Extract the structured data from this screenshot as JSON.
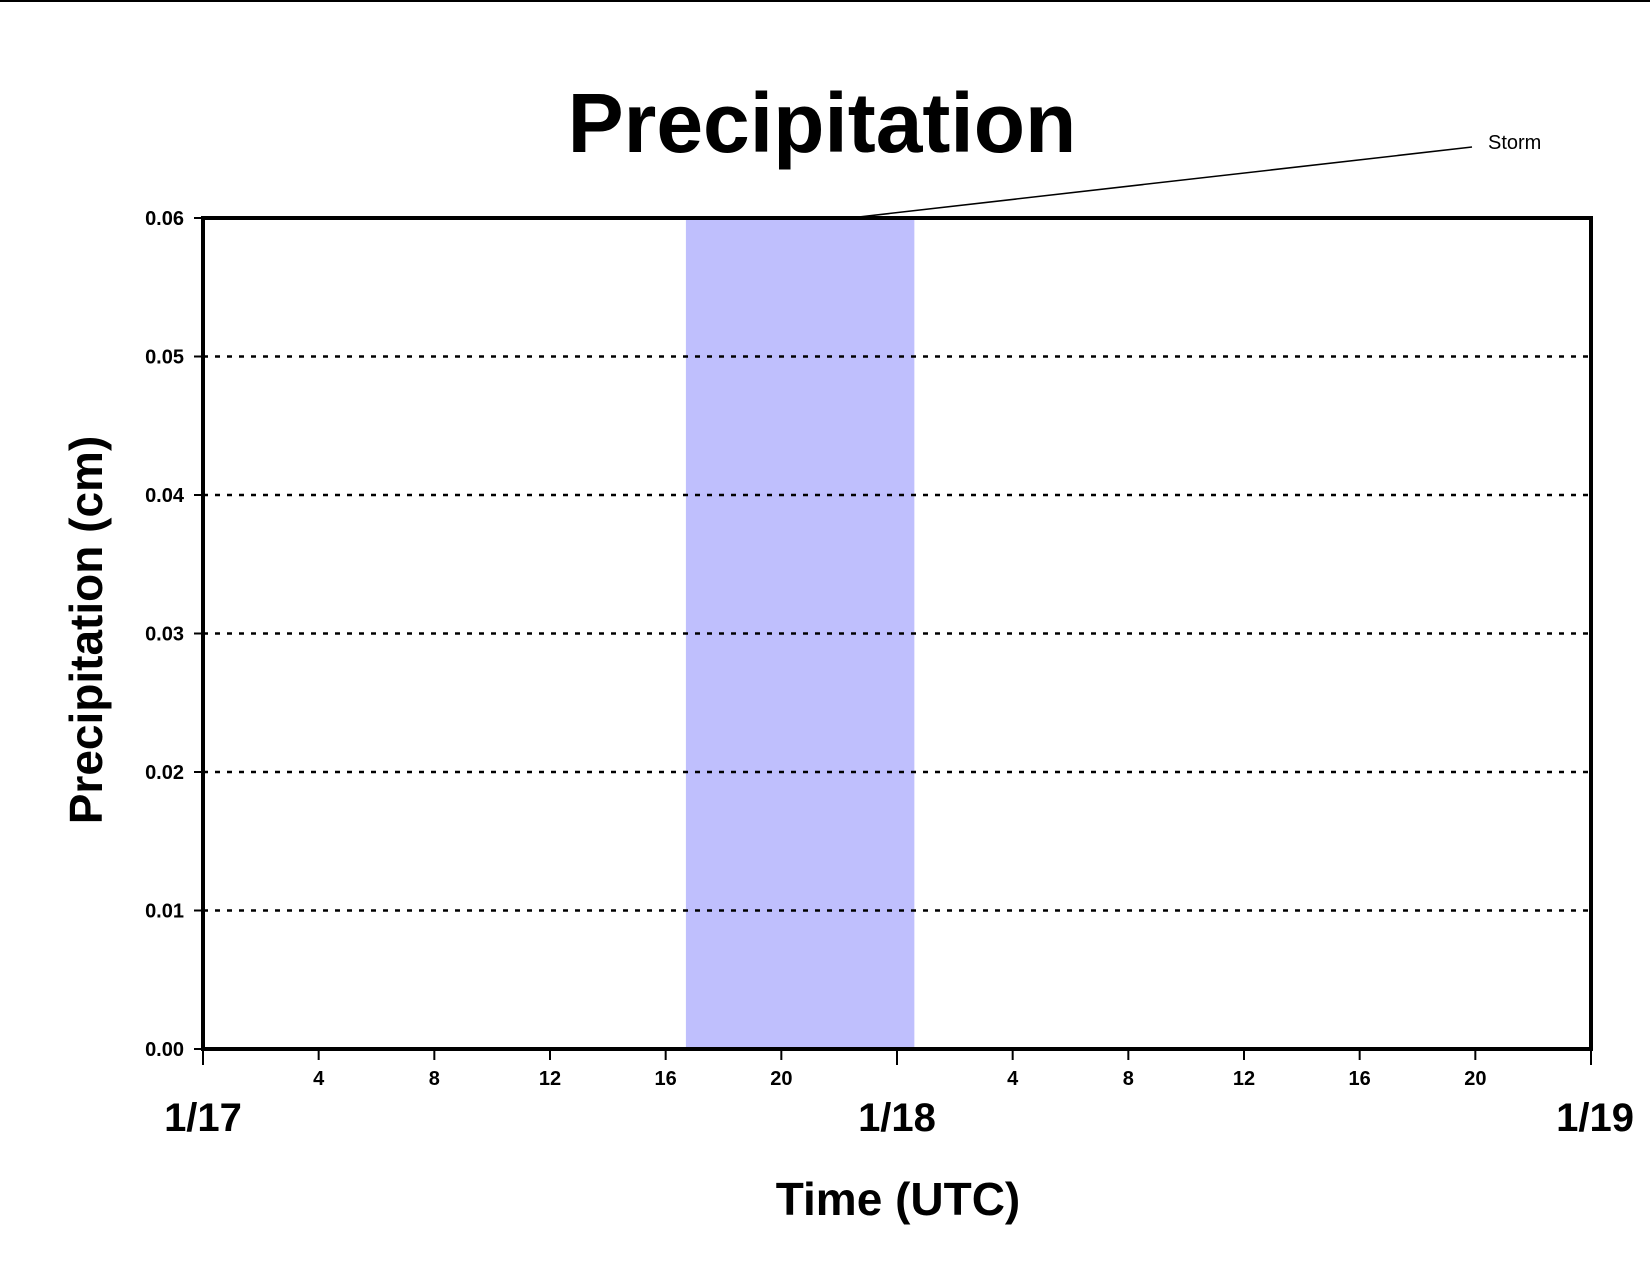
{
  "chart_data": {
    "type": "line",
    "title": "Precipitation",
    "xlabel": "Time (UTC)",
    "ylabel": "Precipitation (cm)",
    "ylim": [
      0,
      0.06
    ],
    "yticks": [
      "0.00",
      "0.01",
      "0.02",
      "0.03",
      "0.04",
      "0.05",
      "0.06"
    ],
    "xlim_hours": [
      0,
      48
    ],
    "xticks_hours": [
      {
        "hour": 4,
        "label": "4"
      },
      {
        "hour": 8,
        "label": "8"
      },
      {
        "hour": 12,
        "label": "12"
      },
      {
        "hour": 16,
        "label": "16"
      },
      {
        "hour": 20,
        "label": "20"
      },
      {
        "hour": 28,
        "label": "4"
      },
      {
        "hour": 32,
        "label": "8"
      },
      {
        "hour": 36,
        "label": "12"
      },
      {
        "hour": 40,
        "label": "16"
      },
      {
        "hour": 44,
        "label": "20"
      }
    ],
    "date_labels": [
      {
        "hour": 0,
        "label": "1/17"
      },
      {
        "hour": 24,
        "label": "1/18"
      },
      {
        "hour": 48,
        "label": "1/19"
      }
    ],
    "grid": "horizontal dotted",
    "storm_band": {
      "label": "Storm",
      "start_hour": 16.7,
      "end_hour": 24.6,
      "color": "#bfbffd"
    },
    "series": [
      {
        "color": "#cc0000",
        "x_hours": [
          0,
          48
        ],
        "values": [
          0.0,
          0.0
        ]
      }
    ]
  }
}
